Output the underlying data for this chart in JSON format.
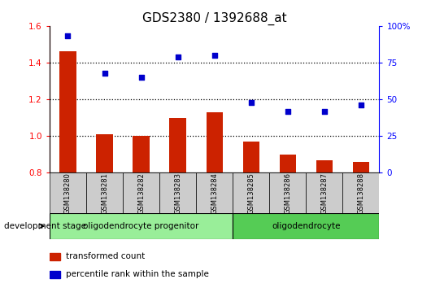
{
  "title": "GDS2380 / 1392688_at",
  "samples": [
    "GSM138280",
    "GSM138281",
    "GSM138282",
    "GSM138283",
    "GSM138284",
    "GSM138285",
    "GSM138286",
    "GSM138287",
    "GSM138288"
  ],
  "transformed_count": [
    1.46,
    1.01,
    1.0,
    1.1,
    1.13,
    0.97,
    0.9,
    0.87,
    0.86
  ],
  "percentile_rank": [
    93,
    68,
    65,
    79,
    80,
    48,
    42,
    42,
    46
  ],
  "ylim_left": [
    0.8,
    1.6
  ],
  "ylim_right": [
    0,
    100
  ],
  "yticks_left": [
    0.8,
    1.0,
    1.2,
    1.4,
    1.6
  ],
  "yticks_right": [
    0,
    25,
    50,
    75,
    100
  ],
  "ytick_labels_right": [
    "0",
    "25",
    "50",
    "75",
    "100%"
  ],
  "bar_color": "#cc2200",
  "dot_color": "#0000cc",
  "groups": [
    {
      "label": "oligodendrocyte progenitor",
      "start": 0,
      "end": 4,
      "color": "#99ee99"
    },
    {
      "label": "oligodendrocyte",
      "start": 5,
      "end": 8,
      "color": "#55cc55"
    }
  ],
  "dev_stage_label": "development stage",
  "legend_bar_label": "transformed count",
  "legend_dot_label": "percentile rank within the sample",
  "sample_box_color": "#cccccc",
  "grid_color": "black",
  "title_fontsize": 11,
  "tick_fontsize": 7.5,
  "label_fontsize": 8
}
